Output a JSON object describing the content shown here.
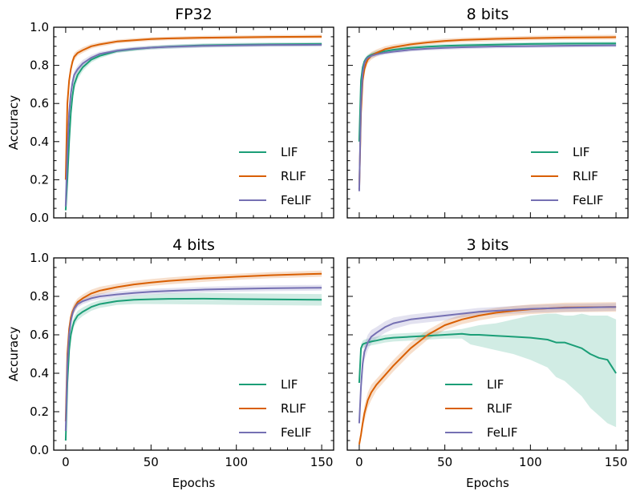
{
  "colors": {
    "LIF": "#1b9e77",
    "RLIF": "#d95f02",
    "FeLIF": "#7570b3"
  },
  "chart_data": [
    {
      "type": "line",
      "title": "FP32",
      "xlabel": "",
      "ylabel": "Accuracy",
      "xlim": [
        -7,
        157
      ],
      "ylim": [
        0.0,
        1.0
      ],
      "x_ticks": [
        "0",
        "50",
        "100",
        "150"
      ],
      "y_ticks": [
        "0.0",
        "0.2",
        "0.4",
        "0.6",
        "0.8",
        "1.0"
      ],
      "legend": "lower-right",
      "series": [
        {
          "name": "LIF",
          "x": [
            0,
            1,
            2,
            3,
            4,
            5,
            7,
            10,
            15,
            20,
            30,
            40,
            50,
            60,
            80,
            100,
            120,
            150
          ],
          "y": [
            0.04,
            0.2,
            0.4,
            0.55,
            0.64,
            0.7,
            0.75,
            0.79,
            0.83,
            0.85,
            0.875,
            0.885,
            0.893,
            0.898,
            0.905,
            0.908,
            0.91,
            0.912
          ],
          "band": [
            0.02,
            0.03,
            0.03,
            0.03,
            0.03,
            0.03,
            0.025,
            0.02,
            0.015,
            0.012,
            0.01,
            0.01,
            0.01,
            0.01,
            0.01,
            0.01,
            0.01,
            0.01
          ]
        },
        {
          "name": "RLIF",
          "x": [
            0,
            1,
            2,
            3,
            4,
            5,
            7,
            10,
            15,
            20,
            30,
            40,
            50,
            60,
            80,
            100,
            120,
            150
          ],
          "y": [
            0.2,
            0.6,
            0.72,
            0.78,
            0.82,
            0.845,
            0.865,
            0.88,
            0.9,
            0.91,
            0.925,
            0.932,
            0.938,
            0.941,
            0.945,
            0.947,
            0.949,
            0.951
          ],
          "band": [
            0.03,
            0.04,
            0.03,
            0.02,
            0.02,
            0.02,
            0.015,
            0.015,
            0.012,
            0.012,
            0.01,
            0.01,
            0.01,
            0.01,
            0.01,
            0.01,
            0.01,
            0.01
          ]
        },
        {
          "name": "FeLIF",
          "x": [
            0,
            1,
            2,
            3,
            4,
            5,
            7,
            10,
            15,
            20,
            30,
            40,
            50,
            60,
            80,
            100,
            120,
            150
          ],
          "y": [
            0.06,
            0.35,
            0.55,
            0.65,
            0.71,
            0.75,
            0.78,
            0.81,
            0.84,
            0.86,
            0.877,
            0.887,
            0.893,
            0.897,
            0.902,
            0.905,
            0.907,
            0.908
          ],
          "band": [
            0.02,
            0.03,
            0.03,
            0.03,
            0.025,
            0.02,
            0.02,
            0.018,
            0.015,
            0.012,
            0.01,
            0.01,
            0.01,
            0.01,
            0.01,
            0.01,
            0.01,
            0.01
          ]
        }
      ]
    },
    {
      "type": "line",
      "title": "8 bits",
      "xlabel": "",
      "ylabel": "",
      "xlim": [
        -7,
        157
      ],
      "ylim": [
        0.0,
        1.0
      ],
      "x_ticks": [
        "0",
        "50",
        "100",
        "150"
      ],
      "y_ticks": [],
      "legend": "lower-right",
      "series": [
        {
          "name": "LIF",
          "x": [
            0,
            1,
            2,
            3,
            4,
            5,
            7,
            10,
            15,
            20,
            30,
            40,
            50,
            60,
            80,
            100,
            120,
            150
          ],
          "y": [
            0.4,
            0.72,
            0.79,
            0.82,
            0.835,
            0.845,
            0.855,
            0.865,
            0.875,
            0.882,
            0.892,
            0.898,
            0.902,
            0.905,
            0.909,
            0.912,
            0.914,
            0.915
          ],
          "band": [
            0.03,
            0.03,
            0.02,
            0.015,
            0.012,
            0.012,
            0.012,
            0.012,
            0.01,
            0.01,
            0.01,
            0.01,
            0.01,
            0.01,
            0.01,
            0.01,
            0.01,
            0.01
          ]
        },
        {
          "name": "RLIF",
          "x": [
            0,
            1,
            2,
            3,
            4,
            5,
            7,
            10,
            15,
            20,
            30,
            40,
            50,
            60,
            80,
            100,
            120,
            150
          ],
          "y": [
            0.15,
            0.55,
            0.72,
            0.78,
            0.81,
            0.83,
            0.85,
            0.865,
            0.885,
            0.895,
            0.91,
            0.92,
            0.928,
            0.933,
            0.939,
            0.943,
            0.946,
            0.948
          ],
          "band": [
            0.03,
            0.05,
            0.04,
            0.03,
            0.025,
            0.02,
            0.02,
            0.018,
            0.015,
            0.015,
            0.012,
            0.012,
            0.012,
            0.012,
            0.012,
            0.012,
            0.012,
            0.012
          ]
        },
        {
          "name": "FeLIF",
          "x": [
            0,
            1,
            2,
            3,
            4,
            5,
            7,
            10,
            15,
            20,
            30,
            40,
            50,
            60,
            80,
            100,
            120,
            150
          ],
          "y": [
            0.14,
            0.6,
            0.76,
            0.81,
            0.83,
            0.84,
            0.85,
            0.858,
            0.866,
            0.872,
            0.882,
            0.888,
            0.892,
            0.895,
            0.899,
            0.901,
            0.903,
            0.905
          ],
          "band": [
            0.02,
            0.04,
            0.03,
            0.02,
            0.015,
            0.012,
            0.012,
            0.012,
            0.01,
            0.01,
            0.01,
            0.01,
            0.01,
            0.01,
            0.01,
            0.01,
            0.01,
            0.01
          ]
        }
      ]
    },
    {
      "type": "line",
      "title": "4 bits",
      "xlabel": "Epochs",
      "ylabel": "Accuracy",
      "xlim": [
        -7,
        157
      ],
      "ylim": [
        0.0,
        1.0
      ],
      "x_ticks": [
        "0",
        "50",
        "100",
        "150"
      ],
      "y_ticks": [
        "0.0",
        "0.2",
        "0.4",
        "0.6",
        "0.8",
        "1.0"
      ],
      "legend": "lower-right",
      "series": [
        {
          "name": "LIF",
          "x": [
            0,
            1,
            2,
            3,
            4,
            5,
            7,
            10,
            15,
            20,
            30,
            40,
            50,
            60,
            80,
            100,
            120,
            150
          ],
          "y": [
            0.05,
            0.35,
            0.52,
            0.6,
            0.64,
            0.67,
            0.7,
            0.72,
            0.745,
            0.76,
            0.775,
            0.782,
            0.785,
            0.787,
            0.788,
            0.786,
            0.784,
            0.782
          ],
          "band": [
            0.02,
            0.03,
            0.03,
            0.03,
            0.03,
            0.025,
            0.025,
            0.022,
            0.02,
            0.02,
            0.02,
            0.022,
            0.025,
            0.028,
            0.03,
            0.03,
            0.03,
            0.03
          ]
        },
        {
          "name": "RLIF",
          "x": [
            0,
            1,
            2,
            3,
            4,
            5,
            7,
            10,
            15,
            20,
            30,
            40,
            50,
            60,
            80,
            100,
            120,
            150
          ],
          "y": [
            0.15,
            0.5,
            0.63,
            0.69,
            0.72,
            0.74,
            0.77,
            0.79,
            0.815,
            0.83,
            0.848,
            0.862,
            0.872,
            0.88,
            0.893,
            0.902,
            0.91,
            0.918
          ],
          "band": [
            0.03,
            0.04,
            0.03,
            0.03,
            0.025,
            0.025,
            0.02,
            0.02,
            0.02,
            0.02,
            0.018,
            0.018,
            0.018,
            0.018,
            0.018,
            0.016,
            0.016,
            0.016
          ]
        },
        {
          "name": "FeLIF",
          "x": [
            0,
            1,
            2,
            3,
            4,
            5,
            7,
            10,
            15,
            20,
            30,
            40,
            50,
            60,
            80,
            100,
            120,
            150
          ],
          "y": [
            0.1,
            0.45,
            0.6,
            0.67,
            0.71,
            0.735,
            0.76,
            0.775,
            0.79,
            0.8,
            0.81,
            0.818,
            0.824,
            0.828,
            0.835,
            0.839,
            0.842,
            0.845
          ],
          "band": [
            0.02,
            0.03,
            0.03,
            0.025,
            0.02,
            0.02,
            0.018,
            0.016,
            0.015,
            0.015,
            0.015,
            0.015,
            0.015,
            0.015,
            0.015,
            0.015,
            0.015,
            0.015
          ]
        }
      ]
    },
    {
      "type": "line",
      "title": "3 bits",
      "xlabel": "Epochs",
      "ylabel": "",
      "xlim": [
        -7,
        157
      ],
      "ylim": [
        0.0,
        1.0
      ],
      "x_ticks": [
        "0",
        "50",
        "100",
        "150"
      ],
      "y_ticks": [],
      "legend": "lower-center",
      "series": [
        {
          "name": "LIF",
          "x": [
            0,
            1,
            2,
            3,
            5,
            7,
            10,
            15,
            20,
            30,
            40,
            50,
            60,
            65,
            70,
            80,
            90,
            100,
            110,
            115,
            120,
            125,
            130,
            135,
            140,
            145,
            150
          ],
          "y": [
            0.35,
            0.53,
            0.55,
            0.555,
            0.56,
            0.565,
            0.57,
            0.58,
            0.585,
            0.59,
            0.595,
            0.6,
            0.605,
            0.6,
            0.6,
            0.595,
            0.59,
            0.585,
            0.575,
            0.56,
            0.56,
            0.545,
            0.53,
            0.5,
            0.48,
            0.47,
            0.4
          ],
          "band_lo": [
            0.32,
            0.51,
            0.53,
            0.535,
            0.54,
            0.545,
            0.55,
            0.56,
            0.565,
            0.57,
            0.575,
            0.58,
            0.58,
            0.55,
            0.54,
            0.52,
            0.5,
            0.47,
            0.43,
            0.38,
            0.36,
            0.32,
            0.28,
            0.22,
            0.18,
            0.14,
            0.12
          ],
          "band_hi": [
            0.38,
            0.55,
            0.57,
            0.575,
            0.58,
            0.585,
            0.59,
            0.6,
            0.605,
            0.61,
            0.615,
            0.62,
            0.63,
            0.64,
            0.65,
            0.66,
            0.68,
            0.7,
            0.71,
            0.71,
            0.7,
            0.7,
            0.71,
            0.7,
            0.7,
            0.7,
            0.68
          ]
        },
        {
          "name": "RLIF",
          "x": [
            0,
            1,
            2,
            3,
            5,
            7,
            10,
            15,
            20,
            30,
            40,
            50,
            60,
            70,
            80,
            90,
            100,
            120,
            150
          ],
          "y": [
            0.03,
            0.08,
            0.14,
            0.19,
            0.26,
            0.3,
            0.34,
            0.39,
            0.44,
            0.53,
            0.6,
            0.65,
            0.68,
            0.7,
            0.715,
            0.725,
            0.733,
            0.742,
            0.745
          ],
          "band": [
            0.02,
            0.02,
            0.03,
            0.04,
            0.04,
            0.04,
            0.03,
            0.03,
            0.03,
            0.03,
            0.025,
            0.025,
            0.025,
            0.025,
            0.025,
            0.025,
            0.025,
            0.025,
            0.025
          ]
        },
        {
          "name": "FeLIF",
          "x": [
            0,
            1,
            2,
            3,
            5,
            7,
            10,
            15,
            20,
            30,
            40,
            50,
            60,
            70,
            80,
            90,
            100,
            120,
            150
          ],
          "y": [
            0.14,
            0.33,
            0.45,
            0.51,
            0.56,
            0.59,
            0.61,
            0.64,
            0.66,
            0.68,
            0.69,
            0.7,
            0.71,
            0.72,
            0.725,
            0.73,
            0.735,
            0.74,
            0.745
          ],
          "band": [
            0.02,
            0.04,
            0.04,
            0.04,
            0.04,
            0.035,
            0.03,
            0.03,
            0.03,
            0.025,
            0.025,
            0.025,
            0.02,
            0.02,
            0.02,
            0.02,
            0.02,
            0.02,
            0.02
          ]
        }
      ]
    }
  ]
}
